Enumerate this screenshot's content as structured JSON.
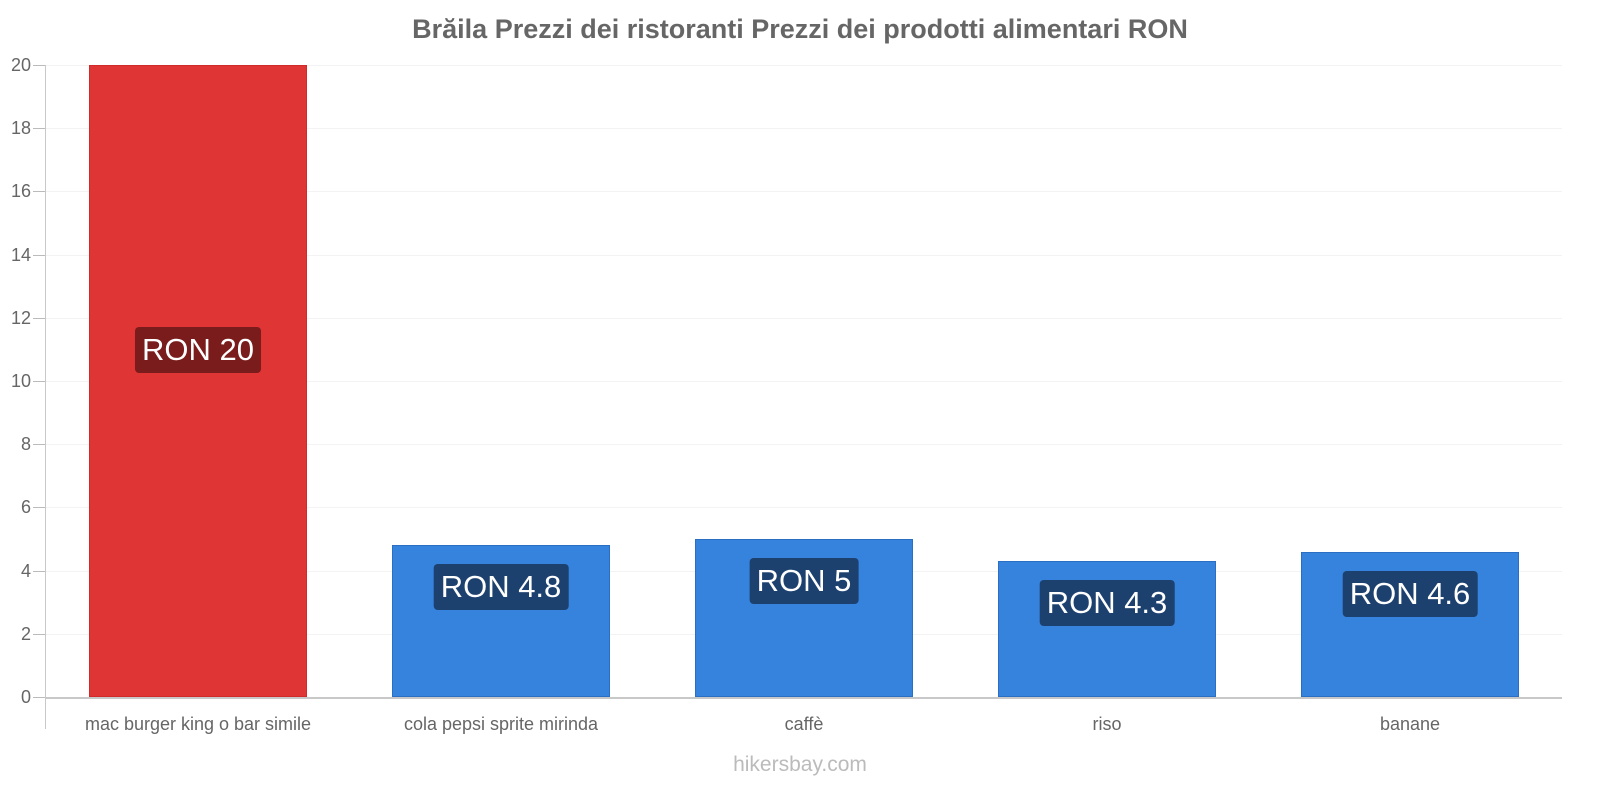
{
  "chart_data": {
    "type": "bar",
    "title": "Brăila Prezzi dei ristoranti Prezzi dei prodotti alimentari RON",
    "categories": [
      "mac burger king o bar simile",
      "cola pepsi sprite mirinda",
      "caffè",
      "riso",
      "banane"
    ],
    "values": [
      20,
      4.8,
      5,
      4.3,
      4.6
    ],
    "value_labels": [
      "RON 20",
      "RON 4.8",
      "RON 5",
      "RON 4.3",
      "RON 4.6"
    ],
    "bar_colors": [
      "#e03535",
      "#3683de",
      "#3683de",
      "#3683de",
      "#3683de"
    ],
    "xlabel": "",
    "ylabel": "",
    "ylim": [
      0,
      20
    ],
    "yticks": [
      0,
      2,
      4,
      6,
      8,
      10,
      12,
      14,
      16,
      18,
      20
    ],
    "grid": true,
    "legend": null
  },
  "header": {
    "title": "Brăila Prezzi dei ristoranti Prezzi dei prodotti alimentari RON"
  },
  "yaxis": {
    "ticks": [
      "0",
      "2",
      "4",
      "6",
      "8",
      "10",
      "12",
      "14",
      "16",
      "18",
      "20"
    ]
  },
  "bars": [
    {
      "category": "mac burger king o bar simile",
      "label": "RON 20"
    },
    {
      "category": "cola pepsi sprite mirinda",
      "label": "RON 4.8"
    },
    {
      "category": "caffè",
      "label": "RON 5"
    },
    {
      "category": "riso",
      "label": "RON 4.3"
    },
    {
      "category": "banane",
      "label": "RON 4.6"
    }
  ],
  "footer": {
    "source": "hikersbay.com"
  },
  "colors": {
    "highlight": "#e03535",
    "normal": "#3683de",
    "highlight_label_bg": "#7a1c1c",
    "normal_label_bg": "#1d416f"
  }
}
